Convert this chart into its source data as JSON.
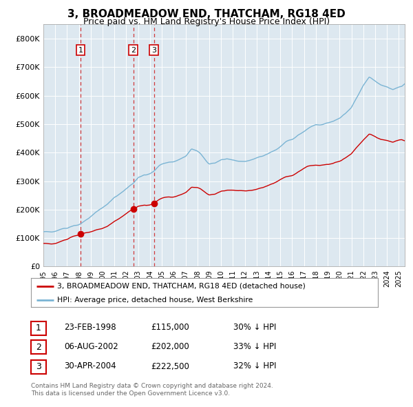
{
  "title": "3, BROADMEADOW END, THATCHAM, RG18 4ED",
  "subtitle": "Price paid vs. HM Land Registry's House Price Index (HPI)",
  "title_fontsize": 11,
  "subtitle_fontsize": 9,
  "background_color": "#ffffff",
  "plot_bg_color": "#dde8f0",
  "hpi_color": "#7ab4d4",
  "price_color": "#cc0000",
  "xmin": 1995.0,
  "xmax": 2025.5,
  "ymin": 0,
  "ymax": 850000,
  "yticks": [
    0,
    100000,
    200000,
    300000,
    400000,
    500000,
    600000,
    700000,
    800000
  ],
  "ytick_labels": [
    "£0",
    "£100K",
    "£200K",
    "£300K",
    "£400K",
    "£500K",
    "£600K",
    "£700K",
    "£800K"
  ],
  "transactions": [
    {
      "num": 1,
      "date": "23-FEB-1998",
      "price": 115000,
      "pct": "30%",
      "x": 1998.14
    },
    {
      "num": 2,
      "date": "06-AUG-2002",
      "price": 202000,
      "pct": "33%",
      "x": 2002.59
    },
    {
      "num": 3,
      "date": "30-APR-2004",
      "price": 222500,
      "pct": "32%",
      "x": 2004.33
    }
  ],
  "legend_line1": "3, BROADMEADOW END, THATCHAM, RG18 4ED (detached house)",
  "legend_line2": "HPI: Average price, detached house, West Berkshire",
  "footer1": "Contains HM Land Registry data © Crown copyright and database right 2024.",
  "footer2": "This data is licensed under the Open Government Licence v3.0."
}
